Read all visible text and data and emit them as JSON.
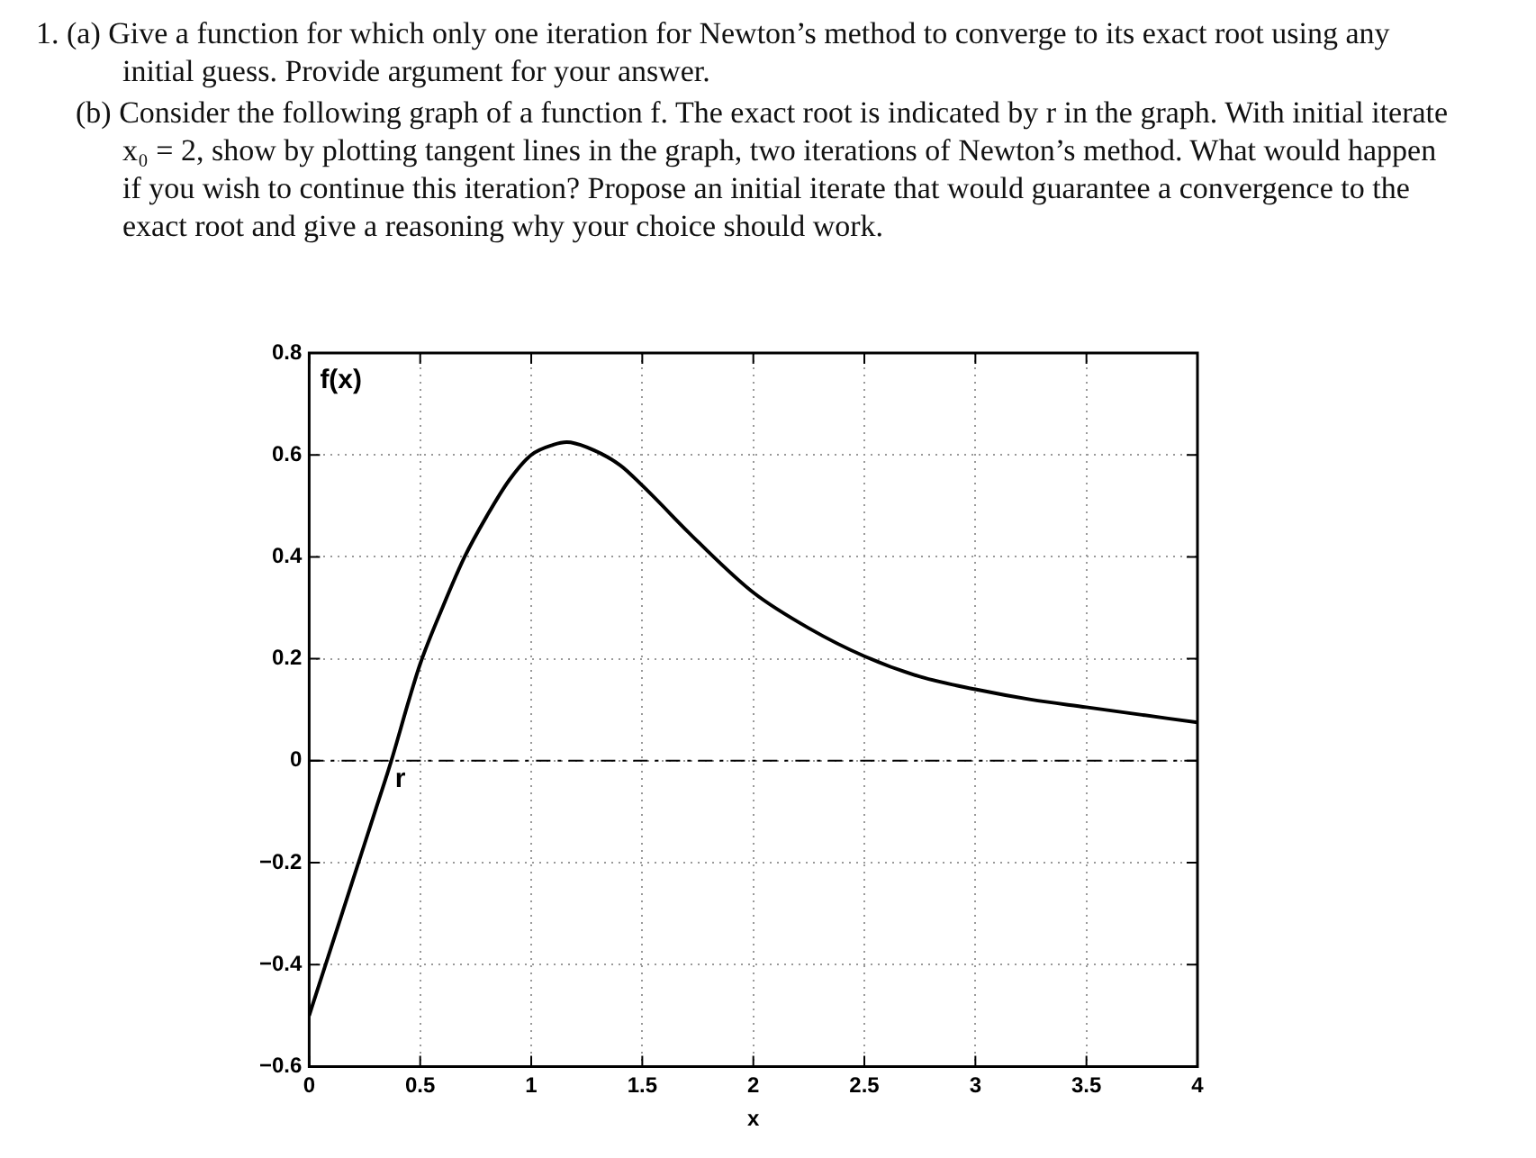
{
  "chart_data": {
    "type": "line",
    "annotations": [
      "1. (a) Give a function for which only one iteration for Newton’s method to converge to its exact root using any initial guess. Provide argument for your answer.",
      "(b) Consider the following graph of a function f. The exact root is indicated by r in the graph. With initial iterate x₀ = 2, show by plotting tangent lines in the graph, two iterations of Newton’s method. What would happen if you wish to continue this iteration? Propose an initial iterate that would guarantee a convergence to the exact root and give a reasoning why your choice should work.",
      {
        "text": "r",
        "x": 0.37,
        "y": 0
      }
    ],
    "xlabel": "x",
    "ylabel": "f(x)",
    "x": [
      0,
      0.1,
      0.2,
      0.3,
      0.37,
      0.45,
      0.5,
      0.6,
      0.7,
      0.8,
      0.9,
      1.0,
      1.1,
      1.16,
      1.25,
      1.4,
      1.5,
      1.75,
      2.0,
      2.25,
      2.5,
      2.75,
      3.0,
      3.25,
      3.5,
      3.75,
      4.0
    ],
    "series": [
      {
        "color": "#000000",
        "values": [
          -0.5,
          -0.365,
          -0.23,
          -0.095,
          0,
          0.12,
          0.19,
          0.3,
          0.4,
          0.48,
          0.55,
          0.6,
          0.62,
          0.625,
          0.615,
          0.58,
          0.54,
          0.43,
          0.33,
          0.26,
          0.205,
          0.165,
          0.14,
          0.12,
          0.105,
          0.09,
          0.075
        ]
      }
    ],
    "xlim": [
      0,
      4
    ],
    "xticks": [
      0,
      0.5,
      1,
      1.5,
      2,
      2.5,
      3,
      3.5,
      4
    ],
    "ylim": [
      -0.6,
      0.8
    ],
    "yticks": [
      {
        "value": -0.6,
        "label": "−0.6"
      },
      {
        "value": -0.4,
        "label": "−0.4"
      },
      {
        "value": -0.2,
        "label": "−0.2"
      },
      0,
      0.2,
      0.4,
      0.6,
      0.8
    ],
    "ref_lines": [
      {
        "axis": "y",
        "value": 0,
        "line_style": "dashed",
        "color": "#000000"
      }
    ],
    "grid": true,
    "legend": false,
    "marker": "none",
    "line_style": "solid"
  }
}
